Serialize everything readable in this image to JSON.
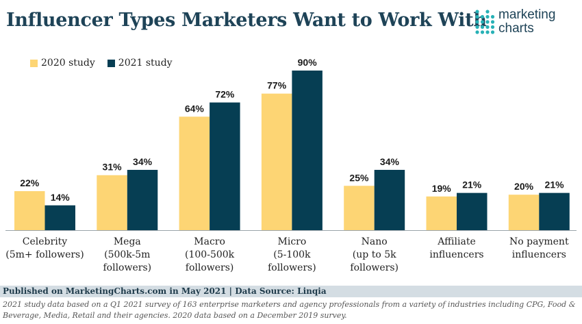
{
  "header": {
    "title": "Influencer Types Marketers Want to Work With"
  },
  "logo": {
    "line1": "marketing",
    "line2": "charts"
  },
  "legend": {
    "series_2020": "2020 study",
    "series_2021": "2021 study"
  },
  "colors": {
    "series_2020": "#fdd574",
    "series_2021": "#063e53",
    "title": "#1e4357",
    "logo_dots": "#27b1b6"
  },
  "chart_data": {
    "type": "bar",
    "categories": [
      [
        "Celebrity",
        "(5m+ followers)"
      ],
      [
        "Mega",
        "(500k-5m",
        "followers)"
      ],
      [
        "Macro",
        "(100-500k",
        "followers)"
      ],
      [
        "Micro",
        "(5-100k",
        "followers)"
      ],
      [
        "Nano",
        "(up to 5k",
        "followers)"
      ],
      [
        "Affiliate",
        "influencers"
      ],
      [
        "No payment",
        "influencers"
      ]
    ],
    "series": [
      {
        "name": "2020 study",
        "values": [
          22,
          31,
          64,
          77,
          25,
          19,
          20
        ]
      },
      {
        "name": "2021 study",
        "values": [
          14,
          34,
          72,
          90,
          34,
          21,
          21
        ]
      }
    ],
    "value_suffix": "%",
    "ylim": [
      0,
      90
    ]
  },
  "footer": {
    "published": "Published on MarketingCharts.com in May 2021 | Data Source: Linqia",
    "note": "2021 study data based on a Q1 2021 survey of 163 enterprise marketers and agency professionals from a variety of industries including CPG, Food & Beverage, Media, Retail and their agencies. 2020 data based on a December 2019 survey."
  }
}
